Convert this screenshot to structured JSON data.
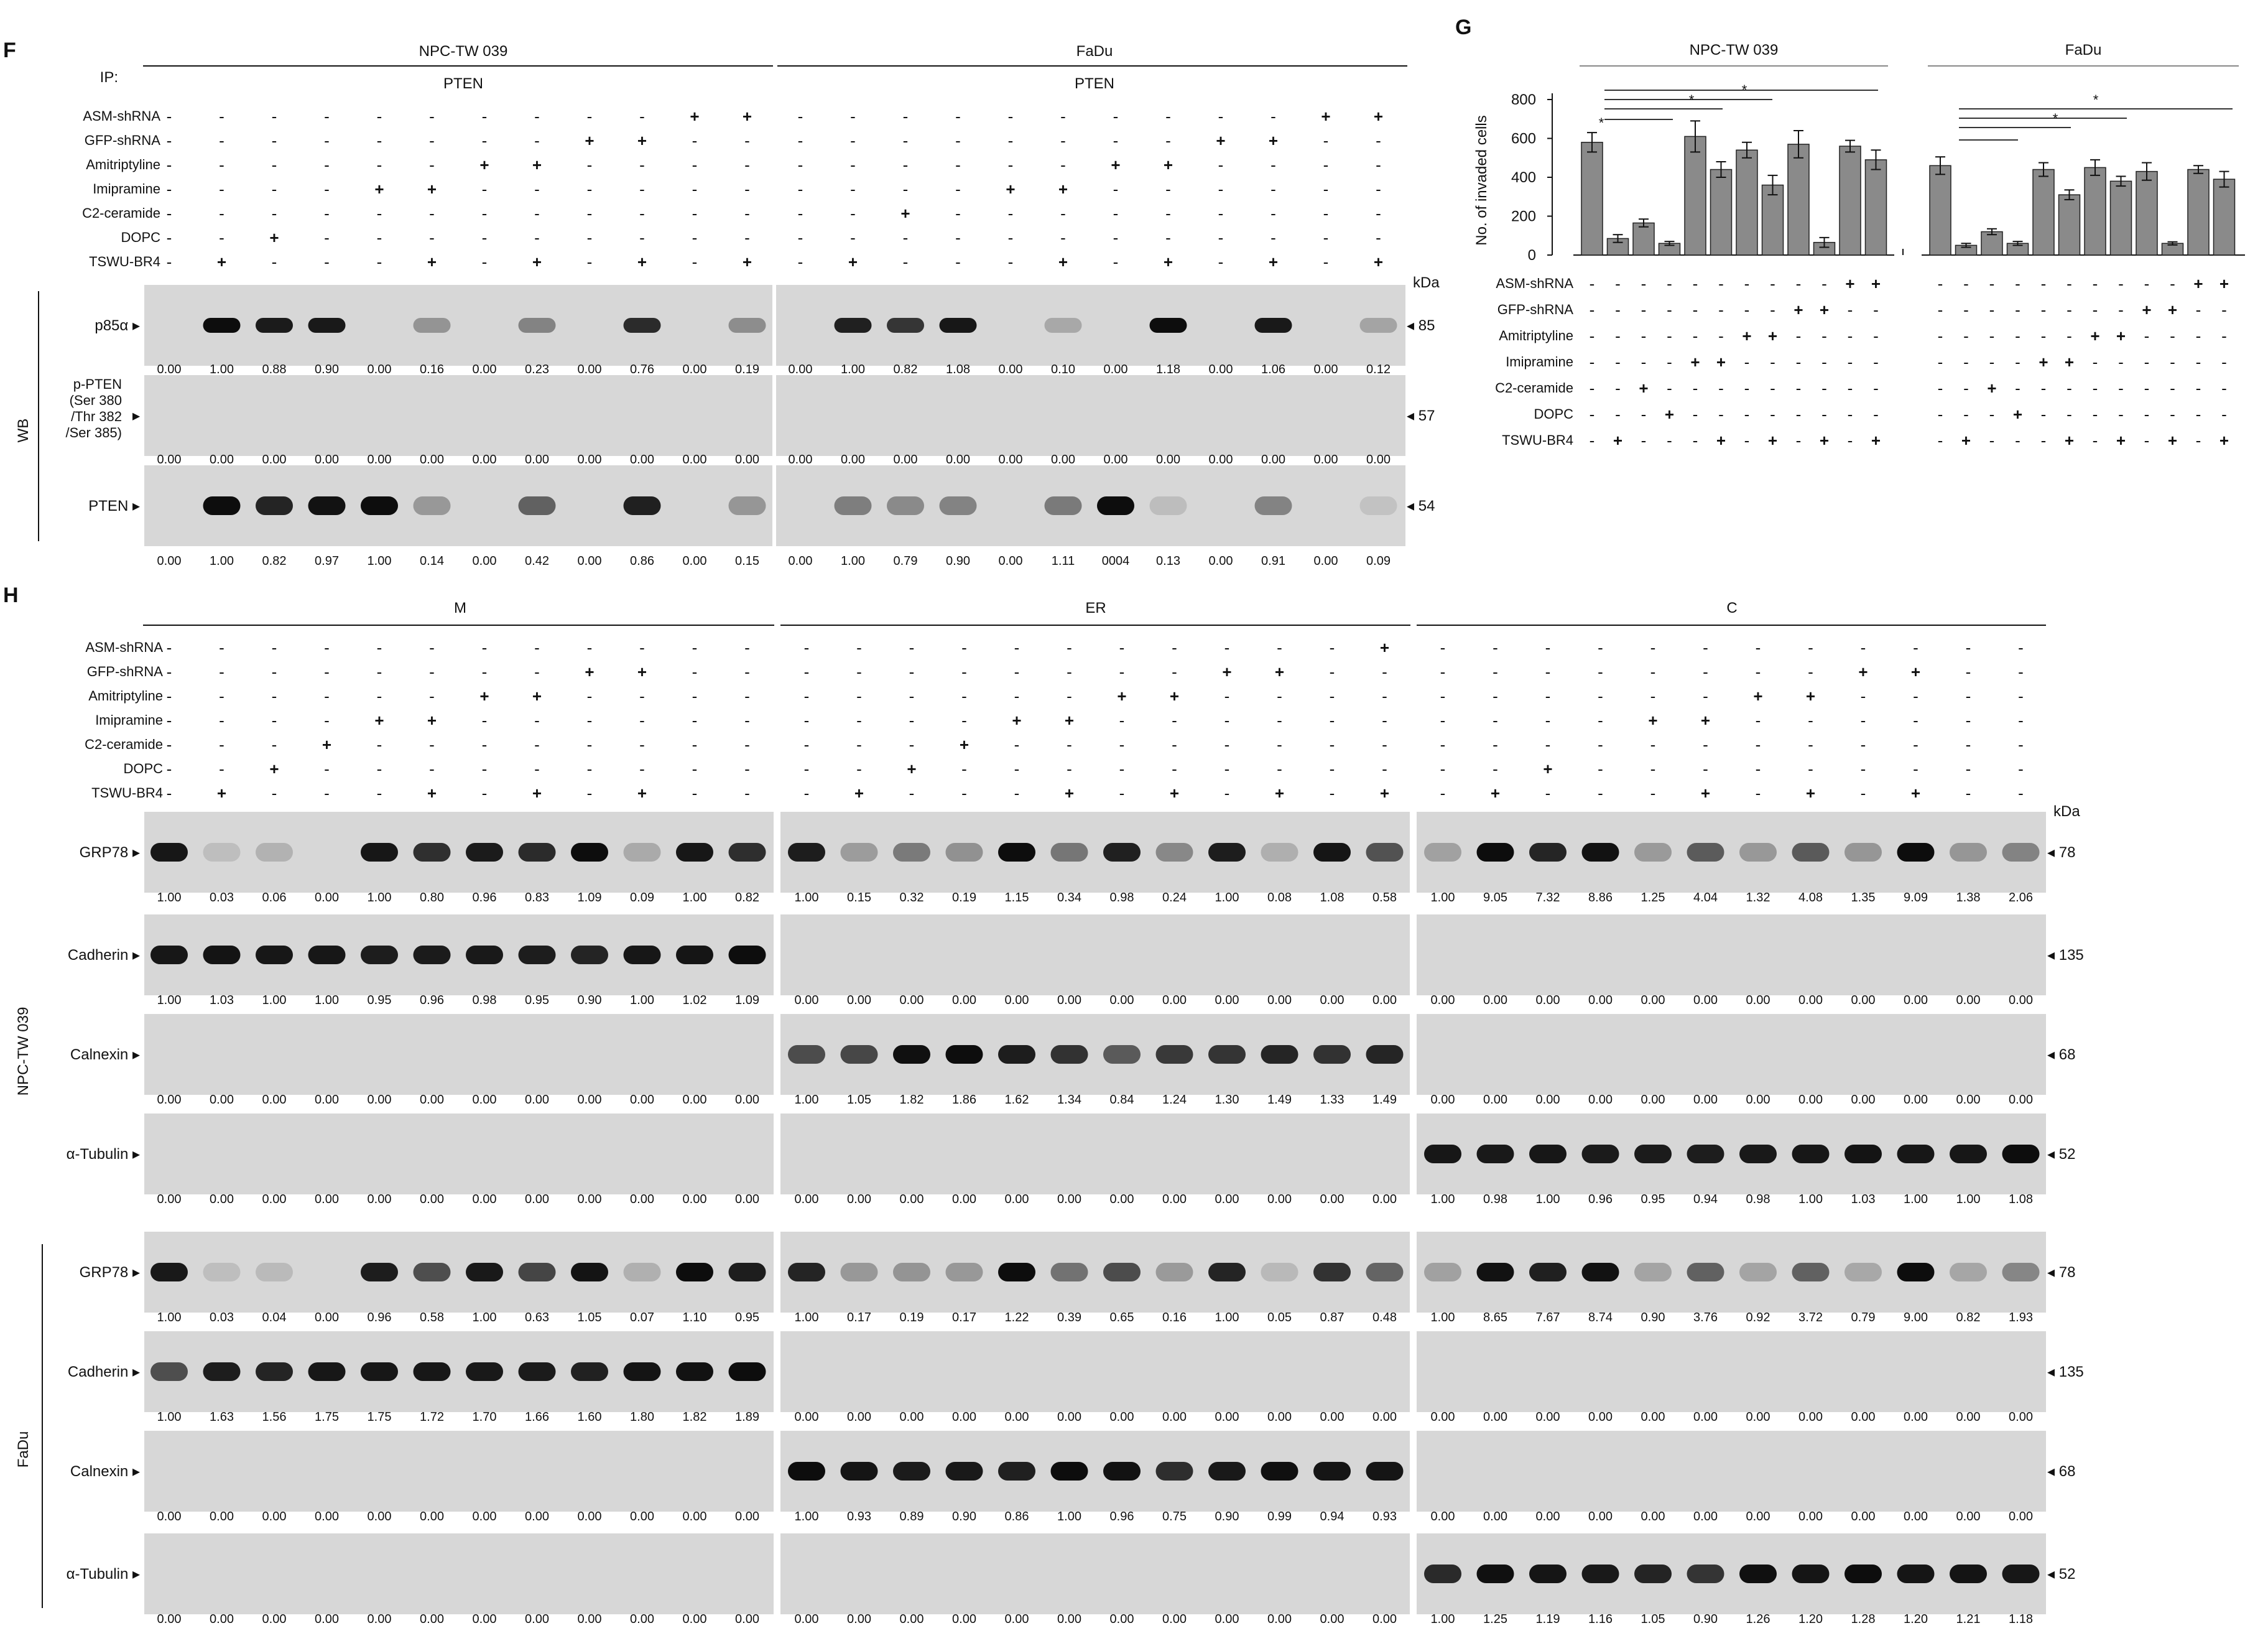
{
  "panel_F": {
    "letter": "F",
    "ip_label": "IP:",
    "ip_target": "PTEN",
    "groups": [
      "NPC-TW 039",
      "FaDu"
    ],
    "treatments": [
      "ASM-shRNA",
      "GFP-shRNA",
      "Amitriptyline",
      "Imipramine",
      "C2-ceramide",
      "DOPC",
      "TSWU-BR4"
    ],
    "signs": [
      [
        "-",
        "-",
        "-",
        "-",
        "-",
        "-",
        "-",
        "-",
        "-",
        "-",
        "+",
        "+",
        "-",
        "-",
        "-",
        "-",
        "-",
        "-",
        "-",
        "-",
        "-",
        "-",
        "+",
        "+"
      ],
      [
        "-",
        "-",
        "-",
        "-",
        "-",
        "-",
        "-",
        "-",
        "+",
        "+",
        "-",
        "-",
        "-",
        "-",
        "-",
        "-",
        "-",
        "-",
        "-",
        "-",
        "+",
        "+",
        "-",
        "-"
      ],
      [
        "-",
        "-",
        "-",
        "-",
        "-",
        "-",
        "+",
        "+",
        "-",
        "-",
        "-",
        "-",
        "-",
        "-",
        "-",
        "-",
        "-",
        "-",
        "+",
        "+",
        "-",
        "-",
        "-",
        "-"
      ],
      [
        "-",
        "-",
        "-",
        "-",
        "+",
        "+",
        "-",
        "-",
        "-",
        "-",
        "-",
        "-",
        "-",
        "-",
        "-",
        "-",
        "+",
        "+",
        "-",
        "-",
        "-",
        "-",
        "-",
        "-"
      ],
      [
        "-",
        "-",
        "-",
        "-",
        "-",
        "-",
        "-",
        "-",
        "-",
        "-",
        "-",
        "-",
        "-",
        "-",
        "+",
        "-",
        "-",
        "-",
        "-",
        "-",
        "-",
        "-",
        "-",
        "-"
      ],
      [
        "-",
        "-",
        "+",
        "-",
        "-",
        "-",
        "-",
        "-",
        "-",
        "-",
        "-",
        "-",
        "-",
        "-",
        "-",
        "-",
        "-",
        "-",
        "-",
        "-",
        "-",
        "-",
        "-",
        "-"
      ],
      [
        "-",
        "+",
        "-",
        "-",
        "-",
        "+",
        "-",
        "+",
        "-",
        "+",
        "-",
        "+",
        "-",
        "+",
        "-",
        "-",
        "-",
        "+",
        "-",
        "+",
        "-",
        "+",
        "-",
        "+"
      ]
    ],
    "wb_label": "WB",
    "kda_label": "kDa",
    "blots": [
      {
        "label": "p85α",
        "kda": "85",
        "values": [
          "0.00",
          "1.00",
          "0.88",
          "0.90",
          "0.00",
          "0.16",
          "0.00",
          "0.23",
          "0.00",
          "0.76",
          "0.00",
          "0.19",
          "0.00",
          "1.00",
          "0.82",
          "1.08",
          "0.00",
          "0.10",
          "0.00",
          "1.18",
          "0.00",
          "1.06",
          "0.00",
          "0.12"
        ]
      },
      {
        "label": "p-PTEN (Ser 380 /Thr 382 /Ser 385)",
        "kda": "57",
        "values": [
          "0.00",
          "0.00",
          "0.00",
          "0.00",
          "0.00",
          "0.00",
          "0.00",
          "0.00",
          "0.00",
          "0.00",
          "0.00",
          "0.00",
          "0.00",
          "0.00",
          "0.00",
          "0.00",
          "0.00",
          "0.00",
          "0.00",
          "0.00",
          "0.00",
          "0.00",
          "0.00",
          "0.00"
        ]
      },
      {
        "label": "PTEN",
        "kda": "54",
        "values": [
          "0.00",
          "1.00",
          "0.82",
          "0.97",
          "1.00",
          "0.14",
          "0.00",
          "0.42",
          "0.00",
          "0.86",
          "0.00",
          "0.15",
          "0.00",
          "1.00",
          "0.79",
          "0.90",
          "0.00",
          "1.11",
          "0004",
          "0.13",
          "0.00",
          "0.91",
          "0.00",
          "0.09"
        ]
      }
    ]
  },
  "panel_G": {
    "letter": "G",
    "groups": [
      "NPC-TW 039",
      "FaDu"
    ],
    "treatments": [
      "ASM-shRNA",
      "GFP-shRNA",
      "Amitriptyline",
      "Imipramine",
      "C2-ceramide",
      "DOPC",
      "TSWU-BR4"
    ],
    "signs": [
      [
        "-",
        "-",
        "-",
        "-",
        "-",
        "-",
        "-",
        "-",
        "-",
        "-",
        "+",
        "+"
      ],
      [
        "-",
        "-",
        "-",
        "-",
        "-",
        "-",
        "-",
        "-",
        "+",
        "+",
        "-",
        "-"
      ],
      [
        "-",
        "-",
        "-",
        "-",
        "-",
        "-",
        "+",
        "+",
        "-",
        "-",
        "-",
        "-"
      ],
      [
        "-",
        "-",
        "-",
        "-",
        "+",
        "+",
        "-",
        "-",
        "-",
        "-",
        "-",
        "-"
      ],
      [
        "-",
        "-",
        "+",
        "-",
        "-",
        "-",
        "-",
        "-",
        "-",
        "-",
        "-",
        "-"
      ],
      [
        "-",
        "-",
        "-",
        "+",
        "-",
        "-",
        "-",
        "-",
        "-",
        "-",
        "-",
        "-"
      ],
      [
        "-",
        "+",
        "-",
        "-",
        "-",
        "+",
        "-",
        "+",
        "-",
        "+",
        "-",
        "+"
      ]
    ],
    "significance_marks": [
      "*",
      "*",
      "*",
      "*",
      "*"
    ],
    "chart_data": {
      "type": "bar",
      "ylabel": "No. of invaded cells",
      "ylim": [
        0,
        800
      ],
      "yticks": [
        "0",
        "200",
        "400",
        "600",
        "800"
      ],
      "series": [
        {
          "name": "NPC-TW 039",
          "values": [
            580,
            85,
            165,
            60,
            610,
            440,
            540,
            360,
            570,
            65,
            560,
            490
          ],
          "errors": [
            50,
            20,
            20,
            10,
            80,
            40,
            40,
            50,
            70,
            25,
            30,
            50
          ]
        },
        {
          "name": "FaDu",
          "values": [
            460,
            50,
            120,
            60,
            440,
            310,
            450,
            380,
            430,
            60,
            440,
            390
          ],
          "errors": [
            45,
            10,
            15,
            10,
            35,
            25,
            40,
            25,
            45,
            8,
            20,
            40
          ]
        }
      ]
    }
  },
  "panel_H": {
    "letter": "H",
    "fractions": [
      "M",
      "ER",
      "C"
    ],
    "treatments": [
      "ASM-shRNA",
      "GFP-shRNA",
      "Amitriptyline",
      "Imipramine",
      "C2-ceramide",
      "DOPC",
      "TSWU-BR4"
    ],
    "signs": [
      [
        "-",
        "-",
        "-",
        "-",
        "-",
        "-",
        "-",
        "-",
        "-",
        "-",
        "-",
        "-",
        "-",
        "-",
        "-",
        "-",
        "-",
        "-",
        "-",
        "-",
        "-",
        "-",
        "-",
        "+",
        "-",
        "-",
        "-",
        "-",
        "-",
        "-",
        "-",
        "-",
        "-",
        "-",
        "-",
        "-"
      ],
      [
        "-",
        "-",
        "-",
        "-",
        "-",
        "-",
        "-",
        "-",
        "+",
        "+",
        "-",
        "-",
        "-",
        "-",
        "-",
        "-",
        "-",
        "-",
        "-",
        "-",
        "+",
        "+",
        "-",
        "-",
        "-",
        "-",
        "-",
        "-",
        "-",
        "-",
        "-",
        "-",
        "+",
        "+",
        "-",
        "-"
      ],
      [
        "-",
        "-",
        "-",
        "-",
        "-",
        "-",
        "+",
        "+",
        "-",
        "-",
        "-",
        "-",
        "-",
        "-",
        "-",
        "-",
        "-",
        "-",
        "+",
        "+",
        "-",
        "-",
        "-",
        "-",
        "-",
        "-",
        "-",
        "-",
        "-",
        "-",
        "+",
        "+",
        "-",
        "-",
        "-",
        "-"
      ],
      [
        "-",
        "-",
        "-",
        "-",
        "+",
        "+",
        "-",
        "-",
        "-",
        "-",
        "-",
        "-",
        "-",
        "-",
        "-",
        "-",
        "+",
        "+",
        "-",
        "-",
        "-",
        "-",
        "-",
        "-",
        "-",
        "-",
        "-",
        "-",
        "+",
        "+",
        "-",
        "-",
        "-",
        "-",
        "-",
        "-"
      ],
      [
        "-",
        "-",
        "-",
        "+",
        "-",
        "-",
        "-",
        "-",
        "-",
        "-",
        "-",
        "-",
        "-",
        "-",
        "-",
        "+",
        "-",
        "-",
        "-",
        "-",
        "-",
        "-",
        "-",
        "-",
        "-",
        "-",
        "-",
        "-",
        "-",
        "-",
        "-",
        "-",
        "-",
        "-",
        "-",
        "-"
      ],
      [
        "-",
        "-",
        "+",
        "-",
        "-",
        "-",
        "-",
        "-",
        "-",
        "-",
        "-",
        "-",
        "-",
        "-",
        "+",
        "-",
        "-",
        "-",
        "-",
        "-",
        "-",
        "-",
        "-",
        "-",
        "-",
        "-",
        "+",
        "-",
        "-",
        "-",
        "-",
        "-",
        "-",
        "-",
        "-",
        "-"
      ],
      [
        "-",
        "+",
        "-",
        "-",
        "-",
        "+",
        "-",
        "+",
        "-",
        "+",
        "-",
        "-",
        "-",
        "+",
        "-",
        "-",
        "-",
        "+",
        "-",
        "+",
        "-",
        "+",
        "-",
        "+",
        "-",
        "+",
        "-",
        "-",
        "-",
        "+",
        "-",
        "+",
        "-",
        "+",
        "-",
        "-"
      ]
    ],
    "kda_label": "kDa",
    "cell_lines": [
      "NPC-TW 039",
      "FaDu"
    ],
    "blocks": [
      {
        "label": "GRP78",
        "kda": "78",
        "values": [
          "1.00",
          "0.03",
          "0.06",
          "0.00",
          "1.00",
          "0.80",
          "0.96",
          "0.83",
          "1.09",
          "0.09",
          "1.00",
          "0.82",
          "1.00",
          "0.15",
          "0.32",
          "0.19",
          "1.15",
          "0.34",
          "0.98",
          "0.24",
          "1.00",
          "0.08",
          "1.08",
          "0.58",
          "1.00",
          "9.05",
          "7.32",
          "8.86",
          "1.25",
          "4.04",
          "1.32",
          "4.08",
          "1.35",
          "9.09",
          "1.38",
          "2.06"
        ]
      },
      {
        "label": "Cadherin",
        "kda": "135",
        "values": [
          "1.00",
          "1.03",
          "1.00",
          "1.00",
          "0.95",
          "0.96",
          "0.98",
          "0.95",
          "0.90",
          "1.00",
          "1.02",
          "1.09",
          "0.00",
          "0.00",
          "0.00",
          "0.00",
          "0.00",
          "0.00",
          "0.00",
          "0.00",
          "0.00",
          "0.00",
          "0.00",
          "0.00",
          "0.00",
          "0.00",
          "0.00",
          "0.00",
          "0.00",
          "0.00",
          "0.00",
          "0.00",
          "0.00",
          "0.00",
          "0.00",
          "0.00"
        ]
      },
      {
        "label": "Calnexin",
        "kda": "68",
        "values": [
          "0.00",
          "0.00",
          "0.00",
          "0.00",
          "0.00",
          "0.00",
          "0.00",
          "0.00",
          "0.00",
          "0.00",
          "0.00",
          "0.00",
          "1.00",
          "1.05",
          "1.82",
          "1.86",
          "1.62",
          "1.34",
          "0.84",
          "1.24",
          "1.30",
          "1.49",
          "1.33",
          "1.49",
          "0.00",
          "0.00",
          "0.00",
          "0.00",
          "0.00",
          "0.00",
          "0.00",
          "0.00",
          "0.00",
          "0.00",
          "0.00",
          "0.00"
        ]
      },
      {
        "label": "α-Tubulin",
        "kda": "52",
        "values": [
          "0.00",
          "0.00",
          "0.00",
          "0.00",
          "0.00",
          "0.00",
          "0.00",
          "0.00",
          "0.00",
          "0.00",
          "0.00",
          "0.00",
          "0.00",
          "0.00",
          "0.00",
          "0.00",
          "0.00",
          "0.00",
          "0.00",
          "0.00",
          "0.00",
          "0.00",
          "0.00",
          "0.00",
          "1.00",
          "0.98",
          "1.00",
          "0.96",
          "0.95",
          "0.94",
          "0.98",
          "1.00",
          "1.03",
          "1.00",
          "1.00",
          "1.08"
        ]
      },
      {
        "label": "GRP78",
        "kda": "78",
        "values": [
          "1.00",
          "0.03",
          "0.04",
          "0.00",
          "0.96",
          "0.58",
          "1.00",
          "0.63",
          "1.05",
          "0.07",
          "1.10",
          "0.95",
          "1.00",
          "0.17",
          "0.19",
          "0.17",
          "1.22",
          "0.39",
          "0.65",
          "0.16",
          "1.00",
          "0.05",
          "0.87",
          "0.48",
          "1.00",
          "8.65",
          "7.67",
          "8.74",
          "0.90",
          "3.76",
          "0.92",
          "3.72",
          "0.79",
          "9.00",
          "0.82",
          "1.93"
        ]
      },
      {
        "label": "Cadherin",
        "kda": "135",
        "values": [
          "1.00",
          "1.63",
          "1.56",
          "1.75",
          "1.75",
          "1.72",
          "1.70",
          "1.66",
          "1.60",
          "1.80",
          "1.82",
          "1.89",
          "0.00",
          "0.00",
          "0.00",
          "0.00",
          "0.00",
          "0.00",
          "0.00",
          "0.00",
          "0.00",
          "0.00",
          "0.00",
          "0.00",
          "0.00",
          "0.00",
          "0.00",
          "0.00",
          "0.00",
          "0.00",
          "0.00",
          "0.00",
          "0.00",
          "0.00",
          "0.00",
          "0.00"
        ]
      },
      {
        "label": "Calnexin",
        "kda": "68",
        "values": [
          "0.00",
          "0.00",
          "0.00",
          "0.00",
          "0.00",
          "0.00",
          "0.00",
          "0.00",
          "0.00",
          "0.00",
          "0.00",
          "0.00",
          "1.00",
          "0.93",
          "0.89",
          "0.90",
          "0.86",
          "1.00",
          "0.96",
          "0.75",
          "0.90",
          "0.99",
          "0.94",
          "0.93",
          "0.00",
          "0.00",
          "0.00",
          "0.00",
          "0.00",
          "0.00",
          "0.00",
          "0.00",
          "0.00",
          "0.00",
          "0.00",
          "0.00"
        ]
      },
      {
        "label": "α-Tubulin",
        "kda": "52",
        "values": [
          "0.00",
          "0.00",
          "0.00",
          "0.00",
          "0.00",
          "0.00",
          "0.00",
          "0.00",
          "0.00",
          "0.00",
          "0.00",
          "0.00",
          "0.00",
          "0.00",
          "0.00",
          "0.00",
          "0.00",
          "0.00",
          "0.00",
          "0.00",
          "0.00",
          "0.00",
          "0.00",
          "0.00",
          "1.00",
          "1.25",
          "1.19",
          "1.16",
          "1.05",
          "0.90",
          "1.26",
          "1.20",
          "1.28",
          "1.20",
          "1.21",
          "1.18"
        ]
      }
    ]
  }
}
